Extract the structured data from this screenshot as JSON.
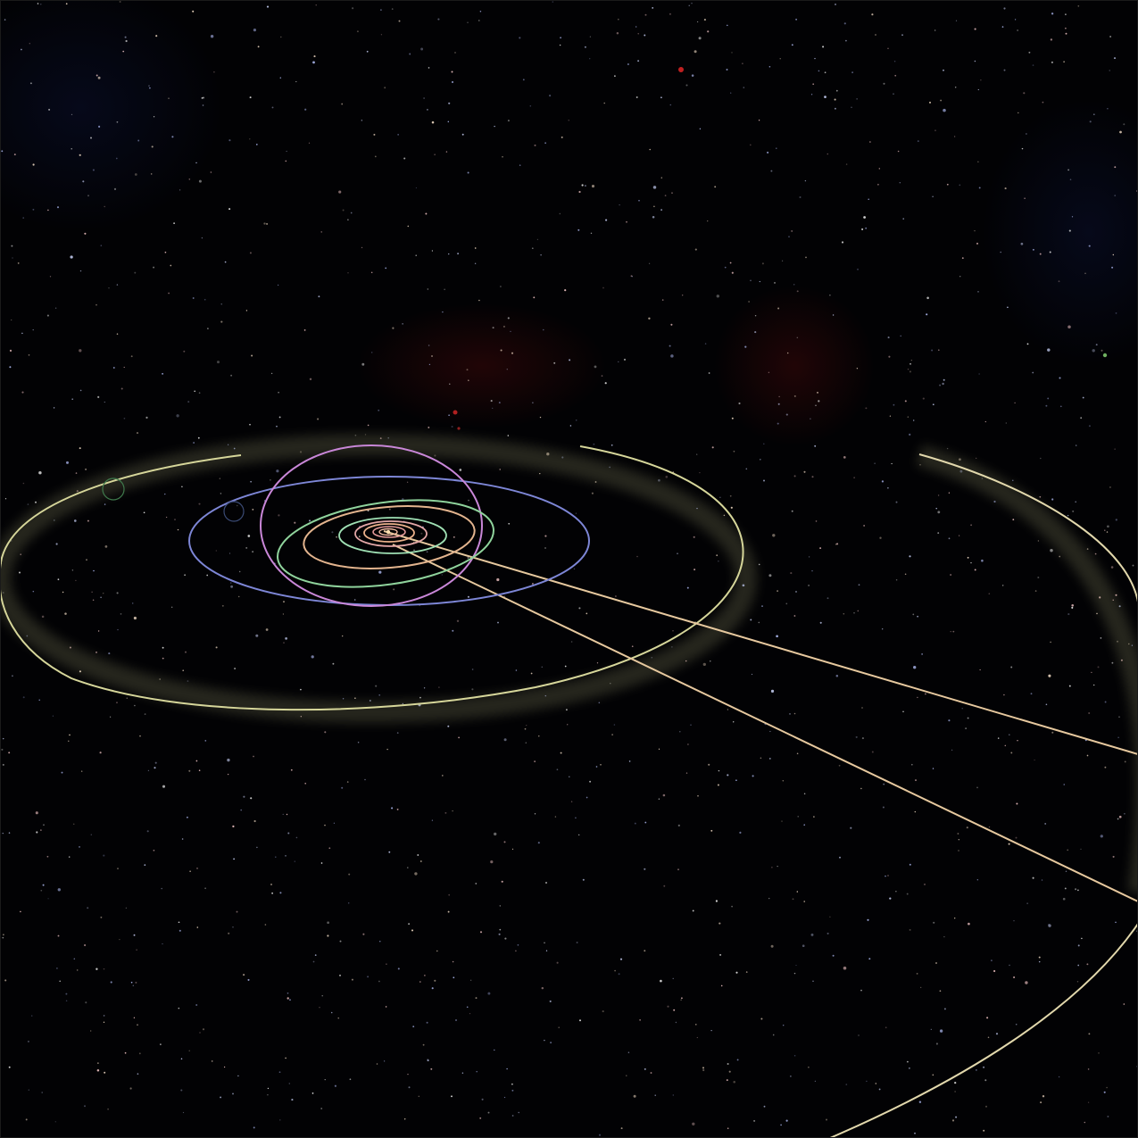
{
  "scene": {
    "subject": "solar-system-orbit-view",
    "background_color": "#020204",
    "orbit_colors": {
      "outer_yellow": "#d8d89a",
      "purple": "#c88ad6",
      "blue": "#7d86d8",
      "green": "#8fd6a0",
      "inner_pink": "#e8a0a0",
      "inner_orange": "#e8b08a",
      "trail_peach": "#e8c9a0",
      "cream": "#e6dcb0"
    },
    "nebula_color": "#3a0a0a",
    "star_count": 1400
  }
}
